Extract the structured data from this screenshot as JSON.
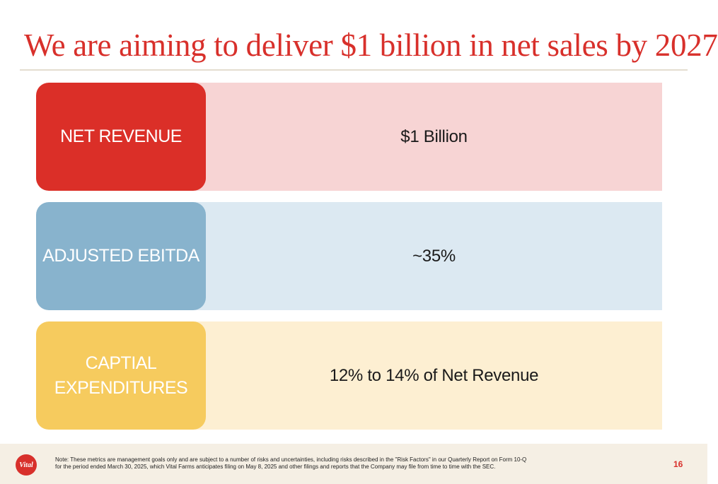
{
  "slide": {
    "title": "We are aiming to deliver $1 billion in net sales by 2027",
    "rows": [
      {
        "label_lines": [
          "NET REVENUE"
        ],
        "value": "$1 Billion"
      },
      {
        "label_lines": [
          "ADJUSTED EBITDA"
        ],
        "value": "~35%"
      },
      {
        "label_lines": [
          "CAPTIAL",
          "EXPENDITURES"
        ],
        "value": "12% to 14% of Net Revenue"
      }
    ]
  },
  "footer": {
    "logo_text": "Vital",
    "note_lines": [
      "Note: These metrics are management goals only and are subject to a number of risks and uncertainties, including risks described in the \"Risk Factors\" in our Quarterly Report on Form 10-Q",
      "for the period ended March 30, 2025, which Vital Farms anticipates filing on May 8, 2025 and other filings and reports that the Company may file from time to time with the SEC."
    ],
    "page_number": "16"
  },
  "colors": {
    "accent_red": "#d8302b",
    "net_revenue_label": "#db2f28",
    "net_revenue_band": "#f7d4d4",
    "ebitda_label": "#88b3cd",
    "ebitda_band": "#dce9f2",
    "capex_label": "#f6cb5e",
    "capex_band": "#fdefd2",
    "footer_bg": "#f5efe4"
  }
}
